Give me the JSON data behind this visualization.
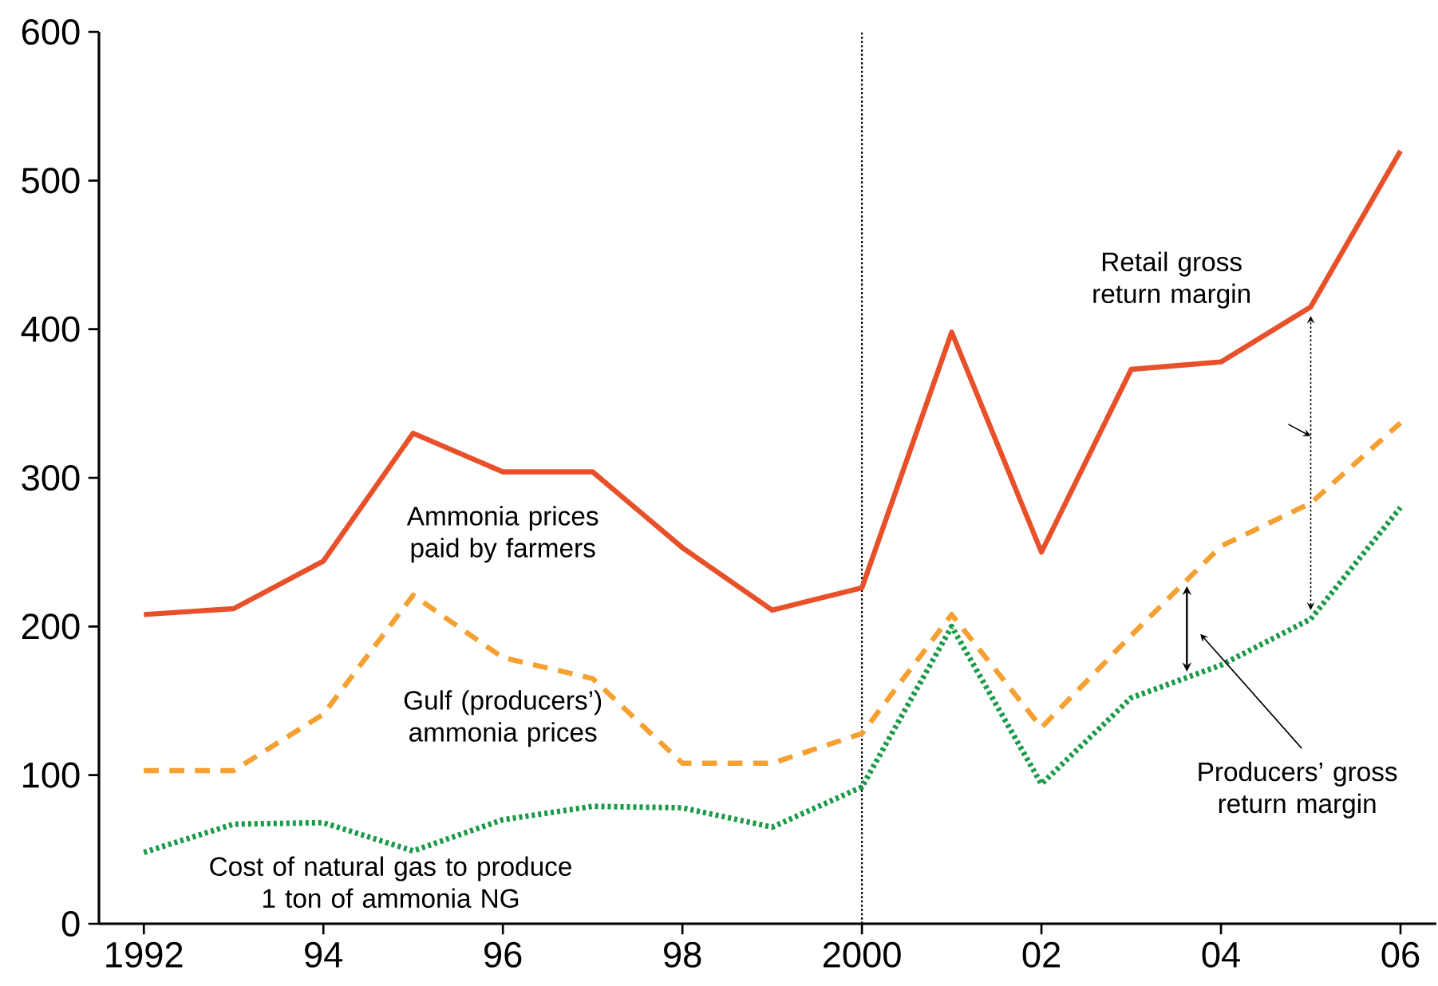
{
  "chart_data": {
    "type": "line",
    "x": [
      1992,
      1993,
      1994,
      1995,
      1996,
      1997,
      1998,
      1999,
      2000,
      2001,
      2002,
      2003,
      2004,
      2005,
      2006
    ],
    "xlim": [
      1991.5,
      2006.4
    ],
    "ylim": [
      0,
      600
    ],
    "xticks": [
      {
        "value": 1992,
        "label": "1992"
      },
      {
        "value": 1994,
        "label": "94"
      },
      {
        "value": 1996,
        "label": "96"
      },
      {
        "value": 1998,
        "label": "98"
      },
      {
        "value": 2000,
        "label": "2000"
      },
      {
        "value": 2002,
        "label": "02"
      },
      {
        "value": 2004,
        "label": "04"
      },
      {
        "value": 2006,
        "label": "06"
      }
    ],
    "yticks": [
      0,
      100,
      200,
      300,
      400,
      500,
      600
    ],
    "grid": false,
    "legend": false,
    "marker": "none",
    "series": [
      {
        "name": "Ammonia prices paid by farmers",
        "color": "#e8502a",
        "line_style": "solid",
        "values": [
          208,
          212,
          244,
          330,
          304,
          304,
          253,
          211,
          226,
          398,
          250,
          373,
          378,
          415,
          520
        ]
      },
      {
        "name": "Gulf (producers’) ammonia prices",
        "color": "#f5a030",
        "line_style": "dashed",
        "values": [
          103,
          103,
          141,
          221,
          179,
          165,
          108,
          108,
          128,
          208,
          132,
          194,
          254,
          283,
          337
        ]
      },
      {
        "name": "Cost of natural gas to produce 1 ton of ammonia NG",
        "color": "#1a9a48",
        "line_style": "dotted",
        "values": [
          48,
          67,
          68,
          49,
          70,
          79,
          78,
          65,
          92,
          200,
          94,
          152,
          174,
          205,
          280
        ]
      }
    ],
    "ref_lines": [
      {
        "axis": "x",
        "value": 2000,
        "color": "#000000",
        "line_style": "dotted"
      }
    ],
    "annotations": [
      "Retail gross return margin",
      "Producers’ gross return margin"
    ]
  }
}
